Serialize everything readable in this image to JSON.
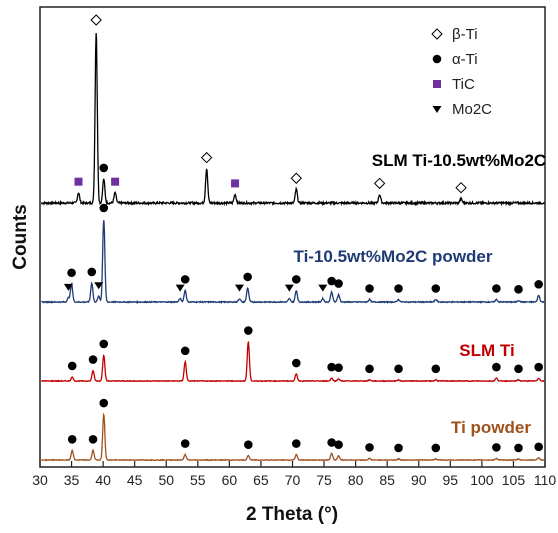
{
  "chart_data": {
    "type": "line",
    "xlabel": "2 Theta (°)",
    "ylabel": "Counts",
    "xlim": [
      30,
      110
    ],
    "x_ticks": [
      30,
      35,
      40,
      45,
      50,
      55,
      60,
      65,
      70,
      75,
      80,
      85,
      90,
      95,
      100,
      105,
      110
    ],
    "legend": {
      "position": "top-right",
      "items": [
        {
          "marker": "open-diamond",
          "label": "β-Ti"
        },
        {
          "marker": "filled-circle",
          "label": "α-Ti"
        },
        {
          "marker": "filled-square",
          "label": "TiC",
          "color": "#7030a0"
        },
        {
          "marker": "down-triangle",
          "label": "Mo2C"
        }
      ]
    },
    "series": [
      {
        "name": "SLM Ti-10.5wt%Mo2C",
        "color": "#000000",
        "peaks": [
          {
            "x": 36.1,
            "h": 0.06,
            "m": "TiC"
          },
          {
            "x": 38.9,
            "h": 1.0,
            "m": "β-Ti"
          },
          {
            "x": 40.1,
            "h": 0.14,
            "m": "α-Ti"
          },
          {
            "x": 41.9,
            "h": 0.06,
            "m": "TiC"
          },
          {
            "x": 56.4,
            "h": 0.2,
            "m": "β-Ti"
          },
          {
            "x": 60.9,
            "h": 0.05,
            "m": "TiC"
          },
          {
            "x": 70.6,
            "h": 0.08,
            "m": "β-Ti"
          },
          {
            "x": 83.8,
            "h": 0.05,
            "m": "β-Ti"
          },
          {
            "x": 96.7,
            "h": 0.025,
            "m": "β-Ti"
          }
        ]
      },
      {
        "name": "Ti-10.5wt%Mo2C powder",
        "color": "#1f3b73",
        "peaks": [
          {
            "x": 34.5,
            "h": 0.05,
            "m": "Mo2C"
          },
          {
            "x": 35.0,
            "h": 0.22,
            "m": "α-Ti"
          },
          {
            "x": 38.2,
            "h": 0.23,
            "m": "α-Ti"
          },
          {
            "x": 39.3,
            "h": 0.07,
            "m": "Mo2C"
          },
          {
            "x": 40.1,
            "h": 1.0,
            "m": "α-Ti"
          },
          {
            "x": 52.2,
            "h": 0.04,
            "m": "Mo2C"
          },
          {
            "x": 53.0,
            "h": 0.14,
            "m": "α-Ti"
          },
          {
            "x": 61.6,
            "h": 0.04,
            "m": "Mo2C"
          },
          {
            "x": 62.9,
            "h": 0.17,
            "m": "α-Ti"
          },
          {
            "x": 69.5,
            "h": 0.04,
            "m": "Mo2C"
          },
          {
            "x": 70.6,
            "h": 0.14,
            "m": "α-Ti"
          },
          {
            "x": 74.8,
            "h": 0.04,
            "m": "Mo2C"
          },
          {
            "x": 76.2,
            "h": 0.12,
            "m": "α-Ti"
          },
          {
            "x": 77.3,
            "h": 0.09,
            "m": "α-Ti"
          },
          {
            "x": 82.2,
            "h": 0.03,
            "m": "α-Ti"
          },
          {
            "x": 86.8,
            "h": 0.03,
            "m": "α-Ti"
          },
          {
            "x": 92.7,
            "h": 0.03,
            "m": "α-Ti"
          },
          {
            "x": 102.3,
            "h": 0.03,
            "m": "α-Ti"
          },
          {
            "x": 105.8,
            "h": 0.02,
            "m": "α-Ti"
          },
          {
            "x": 109.0,
            "h": 0.08,
            "m": "α-Ti"
          }
        ]
      },
      {
        "name": "SLM Ti",
        "color": "#c00000",
        "peaks": [
          {
            "x": 35.1,
            "h": 0.07,
            "m": "α-Ti"
          },
          {
            "x": 38.4,
            "h": 0.18,
            "m": "α-Ti"
          },
          {
            "x": 40.1,
            "h": 0.45,
            "m": "α-Ti"
          },
          {
            "x": 53.0,
            "h": 0.33,
            "m": "α-Ti"
          },
          {
            "x": 63.0,
            "h": 0.68,
            "m": "α-Ti"
          },
          {
            "x": 70.6,
            "h": 0.12,
            "m": "α-Ti"
          },
          {
            "x": 76.2,
            "h": 0.05,
            "m": "α-Ti"
          },
          {
            "x": 77.3,
            "h": 0.04,
            "m": "α-Ti"
          },
          {
            "x": 82.2,
            "h": 0.02,
            "m": "α-Ti"
          },
          {
            "x": 86.8,
            "h": 0.02,
            "m": "α-Ti"
          },
          {
            "x": 92.7,
            "h": 0.02,
            "m": "α-Ti"
          },
          {
            "x": 102.3,
            "h": 0.05,
            "m": "α-Ti"
          },
          {
            "x": 105.8,
            "h": 0.02,
            "m": "α-Ti"
          },
          {
            "x": 109.0,
            "h": 0.05,
            "m": "α-Ti"
          }
        ]
      },
      {
        "name": "Ti powder",
        "color": "#a0521e",
        "peaks": [
          {
            "x": 35.1,
            "h": 0.18,
            "m": "α-Ti"
          },
          {
            "x": 38.4,
            "h": 0.18,
            "m": "α-Ti"
          },
          {
            "x": 40.1,
            "h": 0.85,
            "m": "α-Ti"
          },
          {
            "x": 53.0,
            "h": 0.1,
            "m": "α-Ti"
          },
          {
            "x": 63.0,
            "h": 0.08,
            "m": "α-Ti"
          },
          {
            "x": 70.6,
            "h": 0.1,
            "m": "α-Ti"
          },
          {
            "x": 76.2,
            "h": 0.12,
            "m": "α-Ti"
          },
          {
            "x": 77.3,
            "h": 0.08,
            "m": "α-Ti"
          },
          {
            "x": 82.2,
            "h": 0.03,
            "m": "α-Ti"
          },
          {
            "x": 86.8,
            "h": 0.02,
            "m": "α-Ti"
          },
          {
            "x": 92.7,
            "h": 0.02,
            "m": "α-Ti"
          },
          {
            "x": 102.3,
            "h": 0.03,
            "m": "α-Ti"
          },
          {
            "x": 105.8,
            "h": 0.02,
            "m": "α-Ti"
          },
          {
            "x": 109.0,
            "h": 0.04,
            "m": "α-Ti"
          }
        ]
      }
    ]
  }
}
